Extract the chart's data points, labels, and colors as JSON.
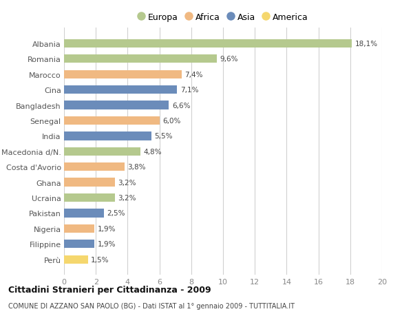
{
  "countries": [
    "Albania",
    "Romania",
    "Marocco",
    "Cina",
    "Bangladesh",
    "Senegal",
    "India",
    "Macedonia d/N.",
    "Costa d'Avorio",
    "Ghana",
    "Ucraina",
    "Pakistan",
    "Nigeria",
    "Filippine",
    "Perù"
  ],
  "values": [
    18.1,
    9.6,
    7.4,
    7.1,
    6.6,
    6.0,
    5.5,
    4.8,
    3.8,
    3.2,
    3.2,
    2.5,
    1.9,
    1.9,
    1.5
  ],
  "labels": [
    "18,1%",
    "9,6%",
    "7,4%",
    "7,1%",
    "6,6%",
    "6,0%",
    "5,5%",
    "4,8%",
    "3,8%",
    "3,2%",
    "3,2%",
    "2,5%",
    "1,9%",
    "1,9%",
    "1,5%"
  ],
  "continents": [
    "Europa",
    "Europa",
    "Africa",
    "Asia",
    "Asia",
    "Africa",
    "Asia",
    "Europa",
    "Africa",
    "Africa",
    "Europa",
    "Asia",
    "Africa",
    "Asia",
    "America"
  ],
  "continent_colors": {
    "Europa": "#b5c98e",
    "Africa": "#f0b982",
    "Asia": "#6b8cba",
    "America": "#f5d76e"
  },
  "legend_order": [
    "Europa",
    "Africa",
    "Asia",
    "America"
  ],
  "xlim": [
    0,
    20
  ],
  "xticks": [
    0,
    2,
    4,
    6,
    8,
    10,
    12,
    14,
    16,
    18,
    20
  ],
  "title": "Cittadini Stranieri per Cittadinanza - 2009",
  "subtitle": "COMUNE DI AZZANO SAN PAOLO (BG) - Dati ISTAT al 1° gennaio 2009 - TUTTITALIA.IT",
  "background_color": "#ffffff",
  "grid_color": "#d0d0d0",
  "bar_height": 0.55,
  "label_color": "#444444",
  "tick_color": "#888888"
}
